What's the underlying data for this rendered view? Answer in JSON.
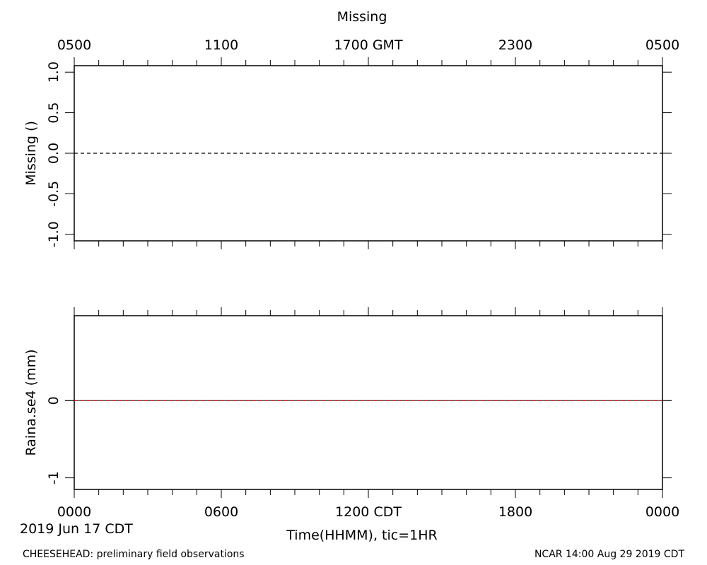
{
  "chart_data": [
    {
      "type": "line",
      "title": "Missing",
      "ylabel": "Missing ()",
      "ylim": [
        -1.08,
        1.08
      ],
      "yticks": [
        -1.0,
        -0.5,
        0.0,
        0.5,
        1.0
      ],
      "ytick_labels": [
        "-1.0",
        "-0.5",
        "0.0",
        "0.5",
        "1.0"
      ],
      "top_axis": {
        "ticks_hours": [
          0,
          6,
          12,
          18,
          24
        ],
        "tick_labels": [
          "0500",
          "1100",
          "1700 GMT",
          "2300",
          "0500"
        ]
      },
      "series": [
        {
          "x": [
            0,
            24
          ],
          "y": [
            0,
            0
          ],
          "color": "#000000",
          "dashed": true
        }
      ]
    },
    {
      "type": "line",
      "ylabel": "Raina.se4 (mm)",
      "ylim": [
        -1.15,
        1.1
      ],
      "yticks": [
        -1,
        0
      ],
      "ytick_labels": [
        "-1",
        "0"
      ],
      "series": [
        {
          "x": [
            0,
            24
          ],
          "y": [
            0,
            0
          ],
          "color": "#cc0000",
          "dashed": true
        }
      ]
    }
  ],
  "x_axis": {
    "xlim_hours": [
      0,
      24
    ],
    "major_ticks_hours": [
      0,
      6,
      12,
      18,
      24
    ],
    "tick_labels": [
      "0000",
      "0600",
      "1200 CDT",
      "1800",
      "0000"
    ],
    "minor_tick_interval_hours": 1,
    "xlabel": "Time(HHMM), tic=1HR"
  },
  "footer": {
    "date": "2019 Jun 17 CDT",
    "left": "CHEESEHEAD: preliminary field observations",
    "right": "NCAR 14:00 Aug 29 2019 CDT"
  }
}
